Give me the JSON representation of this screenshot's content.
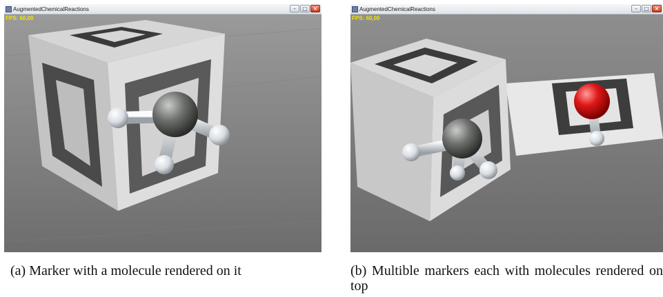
{
  "panels": [
    {
      "window_title": "AugmentedChemicalReactions",
      "fps": "FPS: 60,00",
      "caption": "(a)  Marker with a molecule rendered on it"
    },
    {
      "window_title": "AugmentedChemicalReactions",
      "fps": "FPS: 60,00",
      "caption": "(b)  Multible markers each with molecules rendered on top"
    }
  ],
  "window_buttons": {
    "minimize": "–",
    "maximize": "□",
    "close": "×"
  },
  "colors": {
    "carbon": "#5f625f",
    "hydrogen": "#e8ecef",
    "oxygen": "#d81414",
    "fps_text": "#f0e40a",
    "close_button": "#c9331a"
  },
  "icons": [
    "app-icon",
    "minimize-icon",
    "maximize-icon",
    "close-icon"
  ]
}
